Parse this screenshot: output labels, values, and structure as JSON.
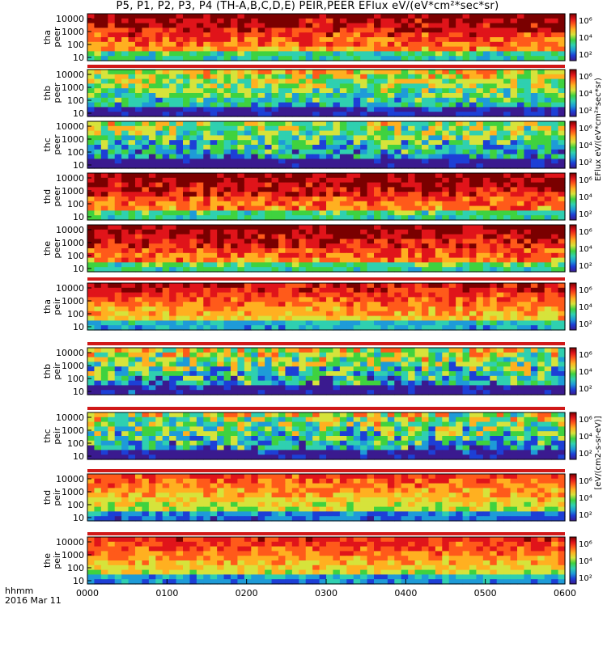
{
  "title": "P5, P1, P2, P3, P4 (TH-A,B,C,D,E) PEIR,PEER EFlux eV/(eV*cm²*sec*sr)",
  "colorbar_label_top": "EFlux eV/(eV*cm²*sec*sr)",
  "colorbar_label_bottom": "[eV/(cm2-s-sr-eV)]",
  "footer": {
    "time_label": "hhmm",
    "date_label": "2016 Mar 11"
  },
  "chart_data": {
    "type": "heatmap",
    "x_axis": {
      "ticks": [
        "0000",
        "0100",
        "0200",
        "0300",
        "0400",
        "0500",
        "0600"
      ],
      "range_hours": [
        0,
        6
      ]
    },
    "y_axis_ticks": [
      "10",
      "100",
      "1000",
      "10000"
    ],
    "colorbar_ticks": [
      "10²",
      "10⁴",
      "10⁶"
    ],
    "colorscale": [
      "#3a1a8f",
      "#1d3fd6",
      "#1e9bd8",
      "#2fd0b0",
      "#3fd23f",
      "#d6e33b",
      "#ffb020",
      "#ff5a1a",
      "#e0141a",
      "#7a0000"
    ],
    "panels": [
      {
        "label1": "tha",
        "label2": "peer",
        "level": 0.78,
        "noise": 0.12
      },
      {
        "label1": "thb",
        "label2": "peer",
        "level": 0.42,
        "noise": 0.18
      },
      {
        "label1": "thc",
        "label2": "peer",
        "level": 0.35,
        "noise": 0.22
      },
      {
        "label1": "thd",
        "label2": "peer",
        "level": 0.8,
        "noise": 0.12
      },
      {
        "label1": "the",
        "label2": "peer",
        "level": 0.8,
        "noise": 0.12
      },
      {
        "label1": "tha",
        "label2": "peir",
        "level": 0.7,
        "noise": 0.1
      },
      {
        "label1": "thb",
        "label2": "peir",
        "level": 0.38,
        "noise": 0.25
      },
      {
        "label1": "thc",
        "label2": "peir",
        "level": 0.36,
        "noise": 0.25
      },
      {
        "label1": "thd",
        "label2": "peir",
        "level": 0.62,
        "noise": 0.1
      },
      {
        "label1": "the",
        "label2": "peir",
        "level": 0.66,
        "noise": 0.1
      }
    ]
  }
}
